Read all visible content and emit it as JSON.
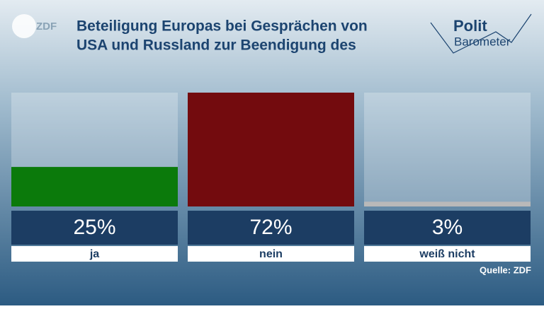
{
  "chart_data": {
    "type": "bar",
    "logo": "ZDF",
    "brand": [
      "Polit",
      "Barometer"
    ],
    "title": [
      "Beteiligung Europas bei Gesprächen von",
      "USA und Russland zur Beendigung des"
    ],
    "categories": [
      "ja",
      "nein",
      "weiß nicht"
    ],
    "series": [
      {
        "colors": [
          "#0b7a0b",
          "#730b0e",
          "#b9b9b9"
        ],
        "values": [
          25,
          72,
          3
        ],
        "value_labels": [
          "25%",
          "72%",
          "3%"
        ]
      }
    ],
    "source": "Quelle: ZDF"
  }
}
